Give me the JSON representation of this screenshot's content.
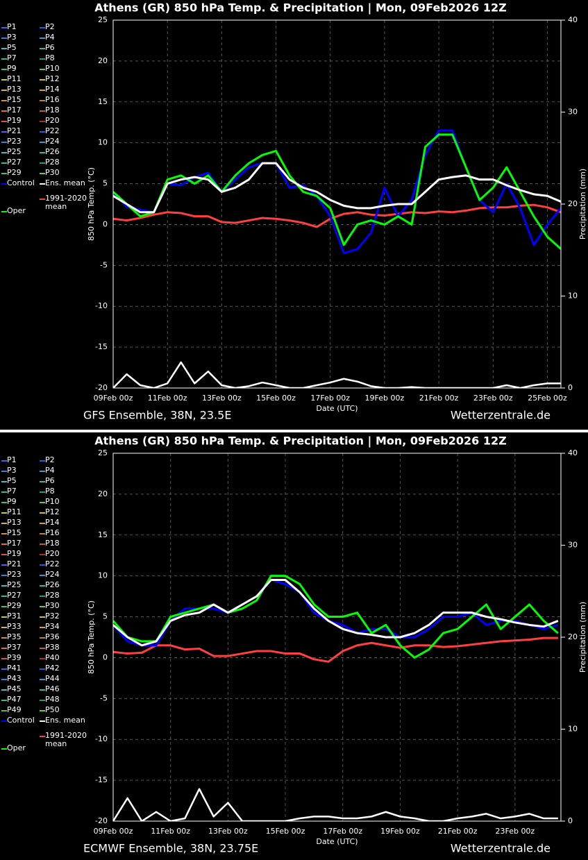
{
  "chart_data": [
    {
      "type": "line",
      "title": "Athens  (GR)  850 hPa Temp. & Precipitation | Mon, 09Feb2026 12Z",
      "footer_left": "GFS Ensemble, 38N, 23.5E",
      "footer_right": "Wetterzentrale.de",
      "x_label": "Date (UTC)",
      "y_label": "850 hPa Temp. (°C)",
      "y2_label": "Precipitation (mm)",
      "xlim": [
        0,
        16.5
      ],
      "xticks": [
        {
          "value": 0,
          "label": "09Feb 00z"
        },
        {
          "value": 2,
          "label": "11Feb 00z"
        },
        {
          "value": 4,
          "label": "13Feb 00z"
        },
        {
          "value": 6,
          "label": "15Feb 00z"
        },
        {
          "value": 8,
          "label": "17Feb 00z"
        },
        {
          "value": 10,
          "label": "19Feb 00z"
        },
        {
          "value": 12,
          "label": "21Feb 00z"
        },
        {
          "value": 14,
          "label": "23Feb 00z"
        },
        {
          "value": 16,
          "label": "25Feb 00z"
        }
      ],
      "ylim": [
        -20,
        25
      ],
      "yticks": [
        -20,
        -15,
        -10,
        -5,
        0,
        5,
        10,
        15,
        20,
        25
      ],
      "y2lim": [
        0,
        40
      ],
      "y2ticks": [
        0,
        10,
        20,
        30,
        40
      ],
      "grid": true,
      "x": [
        0,
        0.5,
        1,
        1.5,
        2,
        2.5,
        3,
        3.5,
        4,
        4.5,
        5,
        5.5,
        6,
        6.5,
        7,
        7.5,
        8,
        8.5,
        9,
        9.5,
        10,
        10.5,
        11,
        11.5,
        12,
        12.5,
        13,
        13.5,
        14,
        14.5,
        15,
        15.5,
        16,
        16.5
      ],
      "members": [
        {
          "name": "P1",
          "color": "#4060ff"
        },
        {
          "name": "P2",
          "color": "#2060e0"
        },
        {
          "name": "P3",
          "color": "#3a80e0"
        },
        {
          "name": "P4",
          "color": "#30a0d0"
        },
        {
          "name": "P5",
          "color": "#40c0c0"
        },
        {
          "name": "P6",
          "color": "#30c090"
        },
        {
          "name": "P7",
          "color": "#40c080"
        },
        {
          "name": "P8",
          "color": "#30a060"
        },
        {
          "name": "P9",
          "color": "#50c050"
        },
        {
          "name": "P10",
          "color": "#60d040"
        },
        {
          "name": "P11",
          "color": "#c0d040"
        },
        {
          "name": "P12",
          "color": "#d0c040"
        },
        {
          "name": "P13",
          "color": "#e0b040"
        },
        {
          "name": "P14",
          "color": "#e0a030"
        },
        {
          "name": "P15",
          "color": "#d09050"
        },
        {
          "name": "P16",
          "color": "#c08040"
        },
        {
          "name": "P17",
          "color": "#e07040"
        },
        {
          "name": "P18",
          "color": "#c06030"
        },
        {
          "name": "P19",
          "color": "#e05050"
        },
        {
          "name": "P20",
          "color": "#b03030"
        },
        {
          "name": "P21",
          "color": "#4060ff"
        },
        {
          "name": "P22",
          "color": "#2060e0"
        },
        {
          "name": "P23",
          "color": "#3a80e0"
        },
        {
          "name": "P24",
          "color": "#30a0d0"
        },
        {
          "name": "P25",
          "color": "#40c0c0"
        },
        {
          "name": "P26",
          "color": "#30c090"
        },
        {
          "name": "P27",
          "color": "#40c080"
        },
        {
          "name": "P28",
          "color": "#30a060"
        },
        {
          "name": "P29",
          "color": "#50c050"
        },
        {
          "name": "P30",
          "color": "#60d040"
        }
      ],
      "series": [
        {
          "name": "Control",
          "color": "#0000ff",
          "values": [
            3.8,
            2.2,
            1.8,
            1.5,
            5,
            4.8,
            5.8,
            6.3,
            4,
            5.5,
            7,
            7.5,
            7.5,
            4.5,
            4.8,
            3.5,
            1,
            -3.5,
            -3,
            -1,
            4.5,
            1,
            3,
            8.5,
            11.5,
            11.5,
            7,
            3,
            1.5,
            5,
            2,
            -2.5,
            0,
            2
          ]
        },
        {
          "name": "Ens. mean",
          "color": "#ffffff",
          "values": [
            3.5,
            2.5,
            1.5,
            1.5,
            5,
            5.5,
            5.8,
            5.5,
            4,
            4.5,
            5.5,
            7.5,
            7.5,
            5.5,
            4.5,
            4,
            3,
            2.3,
            2,
            2,
            2.3,
            2.5,
            2.5,
            4,
            5.5,
            5.8,
            6,
            5.5,
            5.5,
            4.8,
            4.2,
            3.7,
            3.5,
            2.8
          ]
        },
        {
          "name": "Oper",
          "color": "#00ff00",
          "values": [
            4,
            2.5,
            1,
            1.5,
            5.5,
            6,
            5,
            6,
            4,
            6,
            7.5,
            8.5,
            9,
            6,
            4,
            3.5,
            2,
            -2.5,
            0,
            0.5,
            0,
            1,
            0,
            9.5,
            11,
            11,
            7,
            3,
            4.5,
            7,
            4,
            1,
            -1.5,
            -3
          ]
        },
        {
          "name": "1991-2020 mean",
          "color": "#ff4040",
          "values": [
            0.7,
            0.5,
            0.8,
            1.2,
            1.5,
            1.4,
            1,
            1,
            0.3,
            0.2,
            0.5,
            0.8,
            0.7,
            0.5,
            0.2,
            -0.3,
            0.7,
            1.3,
            1.5,
            1.2,
            1.1,
            1.3,
            1.5,
            1.4,
            1.6,
            1.5,
            1.7,
            2,
            2.1,
            2.1,
            2.3,
            2.4,
            2.1,
            1.5
          ]
        }
      ],
      "precip": {
        "axis": "y2",
        "color": "#ffffff",
        "values": [
          0,
          1.5,
          0.3,
          0,
          0.5,
          2.8,
          0.5,
          1.8,
          0.3,
          0,
          0.2,
          0.6,
          0.3,
          0,
          0,
          0.3,
          0.6,
          1,
          0.7,
          0.2,
          0,
          0,
          0.1,
          0,
          0,
          0,
          0,
          0,
          0,
          0.3,
          0,
          0.3,
          0.5,
          0.5
        ]
      }
    },
    {
      "type": "line",
      "title": "Athens  (GR)  850 hPa Temp. & Precipitation | Mon, 09Feb2026 12Z",
      "footer_left": "ECMWF Ensemble, 38N, 23.75E",
      "footer_right": "Wetterzentrale.de",
      "x_label": "Date (UTC)",
      "y_label": "850 hPa Temp. (°C)",
      "y2_label": "Precipitation (mm)",
      "xlim": [
        0,
        15.6
      ],
      "xticks": [
        {
          "value": 0,
          "label": "09Feb 00z"
        },
        {
          "value": 2,
          "label": "11Feb 00z"
        },
        {
          "value": 4,
          "label": "13Feb 00z"
        },
        {
          "value": 6,
          "label": "15Feb 00z"
        },
        {
          "value": 8,
          "label": "17Feb 00z"
        },
        {
          "value": 10,
          "label": "19Feb 00z"
        },
        {
          "value": 12,
          "label": "21Feb 00z"
        },
        {
          "value": 14,
          "label": "23Feb 00z"
        }
      ],
      "ylim": [
        -20,
        25
      ],
      "yticks": [
        -20,
        -15,
        -10,
        -5,
        0,
        5,
        10,
        15,
        20,
        25
      ],
      "y2lim": [
        0,
        40
      ],
      "y2ticks": [
        0,
        10,
        20,
        30,
        40
      ],
      "grid": true,
      "x": [
        0,
        0.5,
        1,
        1.5,
        2,
        2.5,
        3,
        3.5,
        4,
        4.5,
        5,
        5.5,
        6,
        6.5,
        7,
        7.5,
        8,
        8.5,
        9,
        9.5,
        10,
        10.5,
        11,
        11.5,
        12,
        12.5,
        13,
        13.5,
        14,
        14.5,
        15,
        15.5
      ],
      "members": [
        {
          "name": "P1",
          "color": "#4060ff"
        },
        {
          "name": "P2",
          "color": "#2060e0"
        },
        {
          "name": "P3",
          "color": "#3a80e0"
        },
        {
          "name": "P4",
          "color": "#30a0d0"
        },
        {
          "name": "P5",
          "color": "#40c0c0"
        },
        {
          "name": "P6",
          "color": "#30c090"
        },
        {
          "name": "P7",
          "color": "#40c080"
        },
        {
          "name": "P8",
          "color": "#30a060"
        },
        {
          "name": "P9",
          "color": "#50c050"
        },
        {
          "name": "P10",
          "color": "#60d040"
        },
        {
          "name": "P11",
          "color": "#c0d040"
        },
        {
          "name": "P12",
          "color": "#d0c040"
        },
        {
          "name": "P13",
          "color": "#e0b040"
        },
        {
          "name": "P14",
          "color": "#e0a030"
        },
        {
          "name": "P15",
          "color": "#d09050"
        },
        {
          "name": "P16",
          "color": "#c08040"
        },
        {
          "name": "P17",
          "color": "#e07040"
        },
        {
          "name": "P18",
          "color": "#c06030"
        },
        {
          "name": "P19",
          "color": "#e05050"
        },
        {
          "name": "P20",
          "color": "#b03030"
        },
        {
          "name": "P21",
          "color": "#4060ff"
        },
        {
          "name": "P22",
          "color": "#2060e0"
        },
        {
          "name": "P23",
          "color": "#3a80e0"
        },
        {
          "name": "P24",
          "color": "#30a0d0"
        },
        {
          "name": "P25",
          "color": "#40c0c0"
        },
        {
          "name": "P26",
          "color": "#30c090"
        },
        {
          "name": "P27",
          "color": "#40c080"
        },
        {
          "name": "P28",
          "color": "#30a060"
        },
        {
          "name": "P29",
          "color": "#50c050"
        },
        {
          "name": "P30",
          "color": "#60d040"
        },
        {
          "name": "P31",
          "color": "#c0d040"
        },
        {
          "name": "P32",
          "color": "#d0c040"
        },
        {
          "name": "P33",
          "color": "#e0b040"
        },
        {
          "name": "P34",
          "color": "#e0a030"
        },
        {
          "name": "P35",
          "color": "#d09050"
        },
        {
          "name": "P36",
          "color": "#c08040"
        },
        {
          "name": "P37",
          "color": "#e07040"
        },
        {
          "name": "P38",
          "color": "#c06030"
        },
        {
          "name": "P39",
          "color": "#e05050"
        },
        {
          "name": "P40",
          "color": "#b03030"
        },
        {
          "name": "P41",
          "color": "#4060ff"
        },
        {
          "name": "P42",
          "color": "#2060e0"
        },
        {
          "name": "P43",
          "color": "#3a80e0"
        },
        {
          "name": "P44",
          "color": "#30a0d0"
        },
        {
          "name": "P45",
          "color": "#40c0c0"
        },
        {
          "name": "P46",
          "color": "#30c090"
        },
        {
          "name": "P47",
          "color": "#40c080"
        },
        {
          "name": "P48",
          "color": "#30a060"
        },
        {
          "name": "P49",
          "color": "#50c050"
        },
        {
          "name": "P50",
          "color": "#60d040"
        }
      ],
      "series": [
        {
          "name": "Control",
          "color": "#0000ff",
          "values": [
            4,
            2,
            1.5,
            1.5,
            4.5,
            6,
            6,
            6,
            5.5,
            6.5,
            7.5,
            9.5,
            9,
            8,
            5.5,
            4.5,
            4,
            3,
            3.5,
            3.5,
            2.5,
            2.5,
            3.5,
            5,
            5,
            5.5,
            4,
            4.5,
            4.5,
            4,
            3.5,
            4
          ]
        },
        {
          "name": "Ens. mean",
          "color": "#ffffff",
          "values": [
            4,
            2.5,
            1.5,
            2,
            4.5,
            5.2,
            5.5,
            6.5,
            5.5,
            6.5,
            7.5,
            9.5,
            9.5,
            8,
            6,
            4.5,
            3.5,
            3,
            2.8,
            2.5,
            2.5,
            3,
            4,
            5.5,
            5.5,
            5.5,
            5,
            4.7,
            4.3,
            4,
            3.8,
            4.5
          ]
        },
        {
          "name": "Oper",
          "color": "#00ff00",
          "values": [
            4.5,
            2.5,
            2,
            2,
            5,
            5.5,
            6,
            6.5,
            5.5,
            6,
            7,
            10,
            10,
            9,
            6.5,
            5,
            5,
            5.5,
            3,
            4,
            1.5,
            0,
            1,
            3,
            3.5,
            5,
            6.5,
            3.5,
            5,
            6.5,
            4.5,
            3
          ]
        },
        {
          "name": "1991-2020 mean",
          "color": "#ff4040",
          "values": [
            0.7,
            0.5,
            0.6,
            1.5,
            1.5,
            1,
            1.1,
            0.2,
            0.2,
            0.5,
            0.8,
            0.8,
            0.5,
            0.5,
            -0.2,
            -0.5,
            0.8,
            1.5,
            1.8,
            1.5,
            1.2,
            1.5,
            1.5,
            1.3,
            1.4,
            1.6,
            1.8,
            2,
            2.1,
            2.2,
            2.4,
            2.4
          ]
        }
      ],
      "precip": {
        "axis": "y2",
        "color": "#ffffff",
        "values": [
          0,
          2.5,
          0,
          1,
          0,
          0.3,
          3.5,
          0.5,
          2,
          0,
          0,
          0,
          0,
          0.3,
          0.5,
          0.5,
          0.3,
          0.3,
          0.5,
          1,
          0.5,
          0.3,
          0,
          0,
          0.3,
          0.5,
          0.8,
          0.3,
          0.5,
          0.8,
          0.3,
          0.3
        ]
      }
    }
  ]
}
